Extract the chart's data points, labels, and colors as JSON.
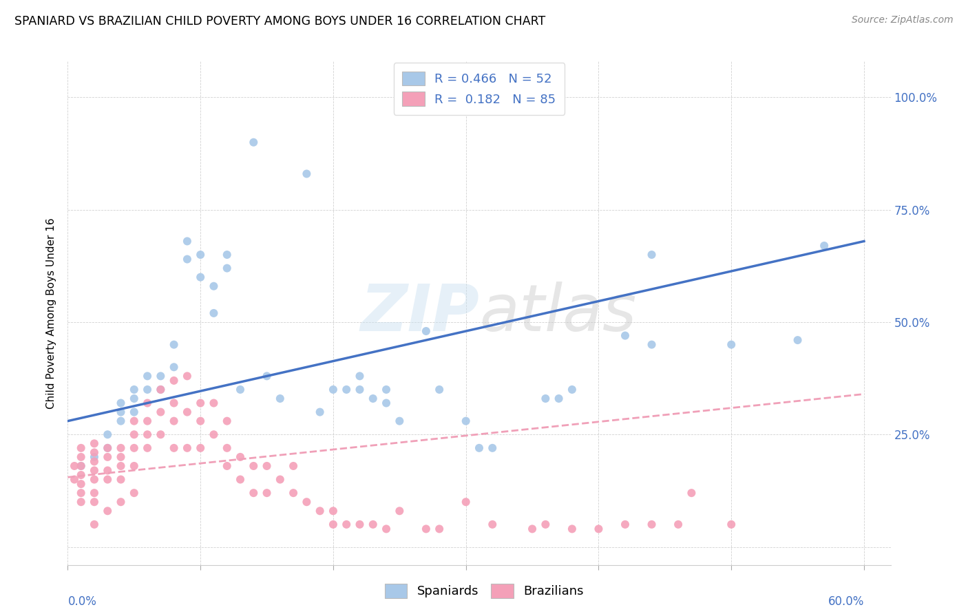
{
  "title": "SPANIARD VS BRAZILIAN CHILD POVERTY AMONG BOYS UNDER 16 CORRELATION CHART",
  "source": "Source: ZipAtlas.com",
  "ylabel": "Child Poverty Among Boys Under 16",
  "spaniards_color": "#a8c8e8",
  "brazilians_color": "#f4a0b8",
  "spaniards_line_color": "#4472c4",
  "brazilians_line_color": "#f0a0b8",
  "legend_text_color": "#4472c4",
  "R_spaniards": 0.466,
  "N_spaniards": 52,
  "R_brazilians": 0.182,
  "N_brazilians": 85,
  "sp_line_x0": 0.0,
  "sp_line_y0": 0.28,
  "sp_line_x1": 0.6,
  "sp_line_y1": 0.68,
  "br_line_x0": 0.0,
  "br_line_y0": 0.155,
  "br_line_x1": 0.6,
  "br_line_y1": 0.34,
  "xlim": [
    0.0,
    0.62
  ],
  "ylim": [
    -0.04,
    1.08
  ],
  "spaniards_x": [
    0.01,
    0.02,
    0.03,
    0.03,
    0.04,
    0.04,
    0.04,
    0.05,
    0.05,
    0.05,
    0.06,
    0.06,
    0.07,
    0.07,
    0.08,
    0.08,
    0.09,
    0.09,
    0.1,
    0.1,
    0.11,
    0.11,
    0.12,
    0.12,
    0.13,
    0.14,
    0.15,
    0.16,
    0.18,
    0.19,
    0.2,
    0.21,
    0.22,
    0.22,
    0.23,
    0.24,
    0.24,
    0.25,
    0.27,
    0.28,
    0.3,
    0.31,
    0.32,
    0.36,
    0.37,
    0.38,
    0.42,
    0.44,
    0.44,
    0.5,
    0.55,
    0.57
  ],
  "spaniards_y": [
    0.18,
    0.2,
    0.22,
    0.25,
    0.28,
    0.3,
    0.32,
    0.3,
    0.33,
    0.35,
    0.35,
    0.38,
    0.35,
    0.38,
    0.45,
    0.4,
    0.64,
    0.68,
    0.6,
    0.65,
    0.52,
    0.58,
    0.62,
    0.65,
    0.35,
    0.9,
    0.38,
    0.33,
    0.83,
    0.3,
    0.35,
    0.35,
    0.35,
    0.38,
    0.33,
    0.32,
    0.35,
    0.28,
    0.48,
    0.35,
    0.28,
    0.22,
    0.22,
    0.33,
    0.33,
    0.35,
    0.47,
    0.45,
    0.65,
    0.45,
    0.46,
    0.67
  ],
  "brazilians_x": [
    0.005,
    0.005,
    0.01,
    0.01,
    0.01,
    0.01,
    0.01,
    0.01,
    0.01,
    0.02,
    0.02,
    0.02,
    0.02,
    0.02,
    0.02,
    0.02,
    0.02,
    0.03,
    0.03,
    0.03,
    0.03,
    0.03,
    0.04,
    0.04,
    0.04,
    0.04,
    0.04,
    0.05,
    0.05,
    0.05,
    0.05,
    0.05,
    0.06,
    0.06,
    0.06,
    0.06,
    0.07,
    0.07,
    0.07,
    0.08,
    0.08,
    0.08,
    0.08,
    0.09,
    0.09,
    0.09,
    0.1,
    0.1,
    0.1,
    0.11,
    0.11,
    0.12,
    0.12,
    0.12,
    0.13,
    0.13,
    0.14,
    0.14,
    0.15,
    0.15,
    0.16,
    0.17,
    0.17,
    0.18,
    0.19,
    0.2,
    0.2,
    0.21,
    0.22,
    0.23,
    0.24,
    0.25,
    0.27,
    0.28,
    0.3,
    0.32,
    0.35,
    0.36,
    0.38,
    0.4,
    0.42,
    0.44,
    0.46,
    0.47,
    0.5
  ],
  "brazilians_y": [
    0.15,
    0.18,
    0.14,
    0.16,
    0.18,
    0.2,
    0.22,
    0.1,
    0.12,
    0.15,
    0.17,
    0.19,
    0.21,
    0.23,
    0.1,
    0.12,
    0.05,
    0.17,
    0.2,
    0.22,
    0.15,
    0.08,
    0.22,
    0.2,
    0.18,
    0.15,
    0.1,
    0.28,
    0.25,
    0.22,
    0.18,
    0.12,
    0.32,
    0.28,
    0.25,
    0.22,
    0.35,
    0.3,
    0.25,
    0.37,
    0.32,
    0.28,
    0.22,
    0.38,
    0.3,
    0.22,
    0.32,
    0.28,
    0.22,
    0.32,
    0.25,
    0.28,
    0.22,
    0.18,
    0.2,
    0.15,
    0.18,
    0.12,
    0.18,
    0.12,
    0.15,
    0.18,
    0.12,
    0.1,
    0.08,
    0.08,
    0.05,
    0.05,
    0.05,
    0.05,
    0.04,
    0.08,
    0.04,
    0.04,
    0.1,
    0.05,
    0.04,
    0.05,
    0.04,
    0.04,
    0.05,
    0.05,
    0.05,
    0.12,
    0.05
  ]
}
